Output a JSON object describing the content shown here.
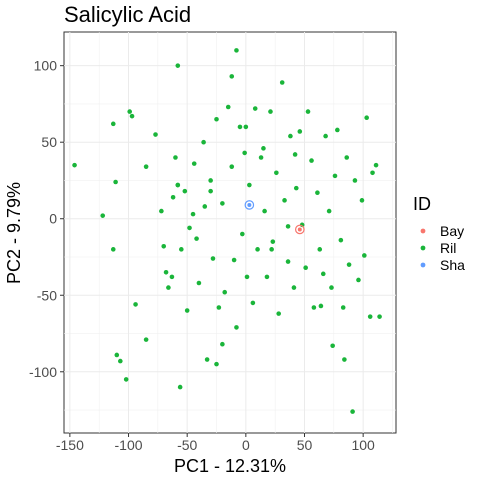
{
  "chart_data": {
    "type": "scatter",
    "title": "Salicylic Acid",
    "xlabel": "PC1 - 12.31%",
    "ylabel": "PC2 - 9.79%",
    "xlim": [
      -155,
      128
    ],
    "ylim": [
      -140,
      122
    ],
    "xticks": [
      -150,
      -100,
      -50,
      0,
      50,
      100
    ],
    "yticks": [
      -100,
      -50,
      0,
      50,
      100
    ],
    "grid": true,
    "legend": {
      "title": "ID",
      "position": "right",
      "entries": [
        {
          "name": "Bay",
          "color": "#F8766D"
        },
        {
          "name": "Ril",
          "color": "#1AB53A"
        },
        {
          "name": "Sha",
          "color": "#619CFF"
        }
      ]
    },
    "series": [
      {
        "name": "Bay",
        "color": "#F8766D",
        "hollow": true,
        "points": [
          [
            46,
            -7
          ]
        ]
      },
      {
        "name": "Sha",
        "color": "#619CFF",
        "hollow": true,
        "points": [
          [
            3,
            9
          ]
        ]
      },
      {
        "name": "Ril",
        "color": "#1AB53A",
        "hollow": false,
        "points": [
          [
            -146,
            35
          ],
          [
            -122,
            2
          ],
          [
            -113,
            -20
          ],
          [
            -111,
            24
          ],
          [
            -110,
            -89
          ],
          [
            -107,
            -93
          ],
          [
            -102,
            -105
          ],
          [
            -99,
            70
          ],
          [
            -97,
            67
          ],
          [
            -94,
            -56
          ],
          [
            -85,
            34
          ],
          [
            -85,
            -79
          ],
          [
            -113,
            62
          ],
          [
            -77,
            55
          ],
          [
            -72,
            5
          ],
          [
            -70,
            -18
          ],
          [
            -68,
            -35
          ],
          [
            -66,
            -45
          ],
          [
            -63,
            -38
          ],
          [
            -62,
            14
          ],
          [
            -60,
            40
          ],
          [
            -58,
            22
          ],
          [
            -56,
            -110
          ],
          [
            -55,
            -20
          ],
          [
            -52,
            18
          ],
          [
            -50,
            -60
          ],
          [
            -48,
            -6
          ],
          [
            -45,
            3
          ],
          [
            -44,
            36
          ],
          [
            -42,
            -13
          ],
          [
            -40,
            -42
          ],
          [
            -36,
            50
          ],
          [
            -33,
            -92
          ],
          [
            -30,
            25
          ],
          [
            -28,
            -26
          ],
          [
            -25,
            65
          ],
          [
            -23,
            -58
          ],
          [
            -20,
            10
          ],
          [
            -18,
            -48
          ],
          [
            -15,
            73
          ],
          [
            -12,
            34
          ],
          [
            -10,
            -27
          ],
          [
            -8,
            -71
          ],
          [
            -5,
            60
          ],
          [
            -3,
            -10
          ],
          [
            -1,
            43
          ],
          [
            1,
            -38
          ],
          [
            3,
            22
          ],
          [
            6,
            -55
          ],
          [
            8,
            72
          ],
          [
            10,
            -20
          ],
          [
            13,
            40
          ],
          [
            16,
            5
          ],
          [
            18,
            -38
          ],
          [
            21,
            70
          ],
          [
            23,
            -15
          ],
          [
            26,
            30
          ],
          [
            28,
            -62
          ],
          [
            31,
            89
          ],
          [
            33,
            12
          ],
          [
            36,
            -28
          ],
          [
            38,
            54
          ],
          [
            41,
            -45
          ],
          [
            43,
            20
          ],
          [
            46,
            57
          ],
          [
            48,
            -4
          ],
          [
            51,
            -32
          ],
          [
            53,
            70
          ],
          [
            56,
            38
          ],
          [
            58,
            -58
          ],
          [
            61,
            17
          ],
          [
            63,
            -20
          ],
          [
            66,
            -36
          ],
          [
            68,
            54
          ],
          [
            71,
            5
          ],
          [
            73,
            -45
          ],
          [
            76,
            28
          ],
          [
            78,
            58
          ],
          [
            81,
            -14
          ],
          [
            83,
            -58
          ],
          [
            86,
            40
          ],
          [
            88,
            -30
          ],
          [
            91,
            -126
          ],
          [
            93,
            25
          ],
          [
            96,
            -40
          ],
          [
            99,
            12
          ],
          [
            101,
            -24
          ],
          [
            103,
            66
          ],
          [
            106,
            -64
          ],
          [
            108,
            30
          ],
          [
            111,
            35
          ],
          [
            114,
            -64
          ],
          [
            -30,
            18
          ],
          [
            -8,
            110
          ],
          [
            -58,
            22
          ],
          [
            -12,
            93
          ],
          [
            -58,
            100
          ],
          [
            -35,
            8
          ],
          [
            -20,
            -82
          ],
          [
            22,
            -20
          ],
          [
            42,
            42
          ],
          [
            36,
            -5
          ],
          [
            64,
            -57
          ],
          [
            74,
            -83
          ],
          [
            84,
            -92
          ],
          [
            15,
            46
          ],
          [
            -25,
            -95
          ],
          [
            0,
            60
          ]
        ]
      }
    ]
  }
}
